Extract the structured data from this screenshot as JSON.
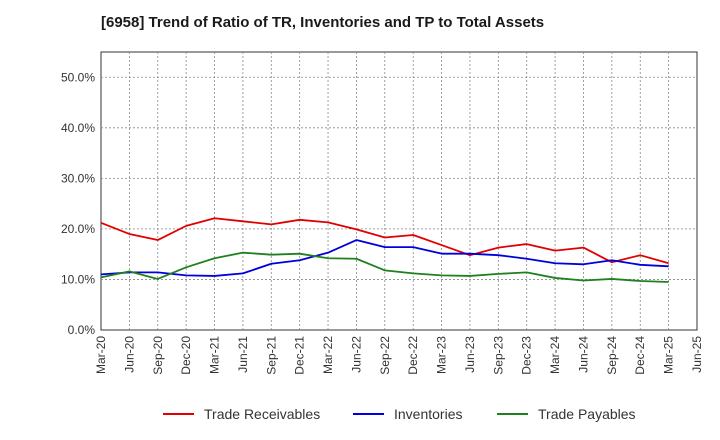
{
  "chart_data": {
    "type": "line",
    "title": "[6958]  Trend of Ratio of TR, Inventories and TP to Total Assets",
    "xlabel": "",
    "ylabel": "",
    "ylim": [
      0,
      55
    ],
    "y_ticks": [
      "0.0%",
      "10.0%",
      "20.0%",
      "30.0%",
      "40.0%",
      "50.0%"
    ],
    "y_tick_values": [
      0,
      10,
      20,
      30,
      40,
      50
    ],
    "x_tick_labels": [
      "Mar-20",
      "Jun-20",
      "Sep-20",
      "Dec-20",
      "Mar-21",
      "Jun-21",
      "Sep-21",
      "Dec-21",
      "Mar-22",
      "Jun-22",
      "Sep-22",
      "Dec-22",
      "Mar-23",
      "Jun-23",
      "Sep-23",
      "Dec-23",
      "Mar-24",
      "Jun-24",
      "Sep-24",
      "Dec-24",
      "Mar-25",
      "Jun-25"
    ],
    "x": [
      "Mar-20",
      "Jun-20",
      "Sep-20",
      "Dec-20",
      "Mar-21",
      "Jun-21",
      "Sep-21",
      "Dec-21",
      "Mar-22",
      "Jun-22",
      "Sep-22",
      "Dec-22",
      "Mar-23",
      "Jun-23",
      "Sep-23",
      "Dec-23",
      "Mar-24",
      "Jun-24",
      "Sep-24",
      "Dec-24",
      "Mar-25"
    ],
    "grid": true,
    "legend_position": "bottom",
    "series": [
      {
        "name": "Trade Receivables",
        "color": "#e00000",
        "values": [
          21.2,
          19.0,
          17.8,
          20.6,
          22.1,
          21.5,
          20.9,
          21.8,
          21.3,
          19.9,
          18.3,
          18.8,
          16.8,
          14.8,
          16.3,
          17.0,
          15.7,
          16.3,
          13.4,
          14.8,
          13.2
        ]
      },
      {
        "name": "Inventories",
        "color": "#0000dd",
        "values": [
          11.0,
          11.4,
          11.4,
          10.8,
          10.7,
          11.2,
          13.1,
          13.8,
          15.3,
          17.8,
          16.4,
          16.4,
          15.1,
          15.1,
          14.8,
          14.1,
          13.2,
          13.0,
          13.8,
          12.9,
          12.6
        ]
      },
      {
        "name": "Trade Payables",
        "color": "#208020",
        "values": [
          10.4,
          11.6,
          10.1,
          12.4,
          14.2,
          15.3,
          14.9,
          15.1,
          14.2,
          14.1,
          11.8,
          11.2,
          10.8,
          10.7,
          11.1,
          11.4,
          10.3,
          9.8,
          10.1,
          9.7,
          9.5
        ]
      }
    ]
  }
}
